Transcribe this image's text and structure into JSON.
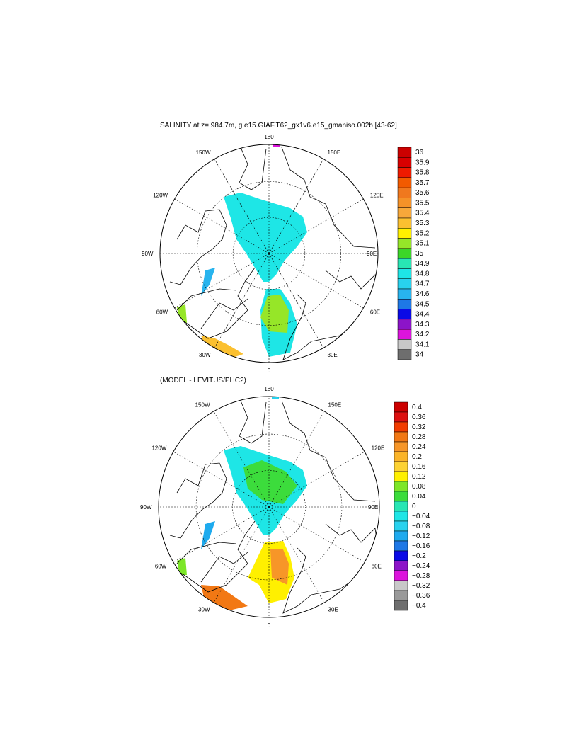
{
  "panels": [
    {
      "title": "SALINITY at z= 984.7m, g.e15.GIAF.T62_gx1v6.e15_gmaniso.002b [43-62]",
      "lon_labels": [
        "180",
        "150E",
        "120E",
        "90E",
        "60E",
        "30E",
        "0",
        "30W",
        "60W",
        "90W",
        "120W",
        "150W"
      ],
      "colorbar_labels": [
        "36",
        "35.9",
        "35.8",
        "35.7",
        "35.6",
        "35.5",
        "35.4",
        "35.3",
        "35.2",
        "35.1",
        "35",
        "34.9",
        "34.8",
        "34.7",
        "34.6",
        "34.5",
        "34.4",
        "34.3",
        "34.2",
        "34.1",
        "34"
      ],
      "colorbar_colors": [
        "#cc0000",
        "#d80000",
        "#ee1a00",
        "#f25a00",
        "#f0781e",
        "#f59228",
        "#f7a83a",
        "#fbc030",
        "#fff000",
        "#96e628",
        "#3cd628",
        "#28e6b4",
        "#1ee6e6",
        "#28d2ee",
        "#28b4ee",
        "#1e78e6",
        "#0a0ae6",
        "#8c14c8",
        "#dc14dc",
        "#c8c8c8",
        "#6e6e6e"
      ]
    },
    {
      "title": "(MODEL - LEVITUS/PHC2)",
      "lon_labels": [
        "180",
        "150E",
        "120E",
        "90E",
        "60E",
        "30E",
        "0",
        "30W",
        "60W",
        "90W",
        "120W",
        "150W"
      ],
      "colorbar_labels": [
        "0.4",
        "0.36",
        "0.32",
        "0.28",
        "0.24",
        "0.2",
        "0.16",
        "0.12",
        "0.08",
        "0.04",
        "0",
        "−0.04",
        "−0.08",
        "−0.12",
        "−0.16",
        "−0.2",
        "−0.24",
        "−0.28",
        "−0.32",
        "−0.36",
        "−0.4"
      ],
      "colorbar_colors": [
        "#cc0000",
        "#dd1010",
        "#f23c00",
        "#f27814",
        "#f79628",
        "#fbb428",
        "#fdd232",
        "#fff000",
        "#7de628",
        "#3cdc3c",
        "#28e6b4",
        "#1ee6e6",
        "#28d2ee",
        "#1eaaee",
        "#1e78e6",
        "#0a0ae6",
        "#8c14c8",
        "#dc14dc",
        "#c8c8c8",
        "#999999",
        "#6e6e6e"
      ]
    }
  ]
}
